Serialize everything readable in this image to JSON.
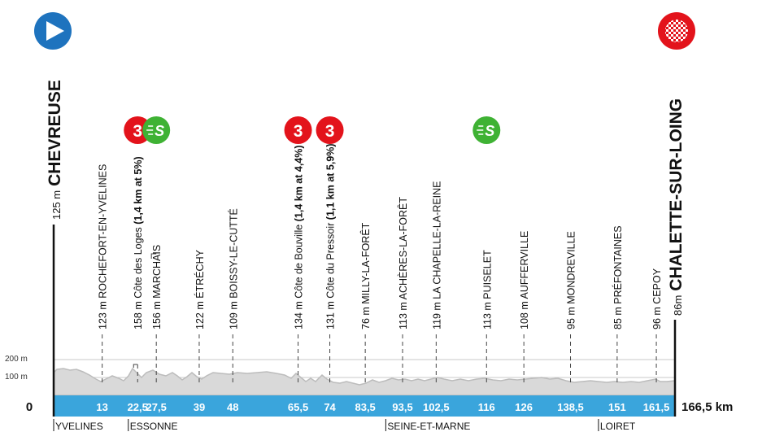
{
  "stage": {
    "start_city": "CHEVREUSE",
    "start_alt": "125 m",
    "finish_city": "CHALETTE-SUR-LOING",
    "finish_alt": "86m",
    "total_distance": "166,5 km",
    "origin_label": "0"
  },
  "y_axis": {
    "ticks": [
      "200 m",
      "100 m"
    ]
  },
  "distance_marks": [
    "13",
    "22,5",
    "27,5",
    "39",
    "48",
    "65,5",
    "74",
    "83,5",
    "93,5",
    "102,5",
    "116",
    "126",
    "138,5",
    "151",
    "161,5"
  ],
  "waypoints": [
    {
      "km": 13,
      "alt_label": "123 m",
      "name": "ROCHEFORT-EN-YVELINES"
    },
    {
      "km": 22.5,
      "alt_label": "158 m",
      "name_normal": "Côte des Loges ",
      "name_bold": "(1,4 km at 5%)",
      "category": "3"
    },
    {
      "km": 27.5,
      "alt_label": "156 m",
      "name": "MARCHAIS",
      "sprint": "S"
    },
    {
      "km": 39,
      "alt_label": "122 m",
      "name": "ÉTRÉCHY"
    },
    {
      "km": 48,
      "alt_label": "109 m",
      "name": "BOISSY-LE-CUTTÉ"
    },
    {
      "km": 65.5,
      "alt_label": "134 m",
      "name_normal": "Côte de Bouville ",
      "name_bold": "(1,4 km at 4,4%)",
      "category": "3"
    },
    {
      "km": 74,
      "alt_label": "131 m",
      "name_normal": "Côte du Pressoir ",
      "name_bold": "(1,1 km at 5,9%)",
      "category": "3"
    },
    {
      "km": 83.5,
      "alt_label": "76 m",
      "name": "MILLY-LA-FORÊT"
    },
    {
      "km": 93.5,
      "alt_label": "113 m",
      "name": "ACHÈRES-LA-FORÊT"
    },
    {
      "km": 102.5,
      "alt_label": "119 m",
      "name": "LA CHAPELLE-LA-REINE"
    },
    {
      "km": 116,
      "alt_label": "113 m",
      "name": "PUISELET",
      "sprint": "S"
    },
    {
      "km": 126,
      "alt_label": "108 m",
      "name": "AUFFERVILLE"
    },
    {
      "km": 138.5,
      "alt_label": "95 m",
      "name": "MONDREVILLE"
    },
    {
      "km": 151,
      "alt_label": "85 m",
      "name": "PRÉFONTAINES"
    },
    {
      "km": 161.5,
      "alt_label": "96 m",
      "name": "CEPOY"
    }
  ],
  "departments": [
    {
      "km": 0,
      "name": "YVELINES"
    },
    {
      "km": 20,
      "name": "ESSONNE"
    },
    {
      "km": 89,
      "name": "SEINE-ET-MARNE"
    },
    {
      "km": 146,
      "name": "LOIRET"
    }
  ],
  "colors": {
    "distance_band": "#3aa5dc",
    "profile_fill": "#d9d9d9",
    "profile_line": "#bcbcbc",
    "start_icon": "#1e73be",
    "climb_badge": "#e3131b",
    "sprint_badge": "#3fb234",
    "finish_check": "#e3131b"
  }
}
